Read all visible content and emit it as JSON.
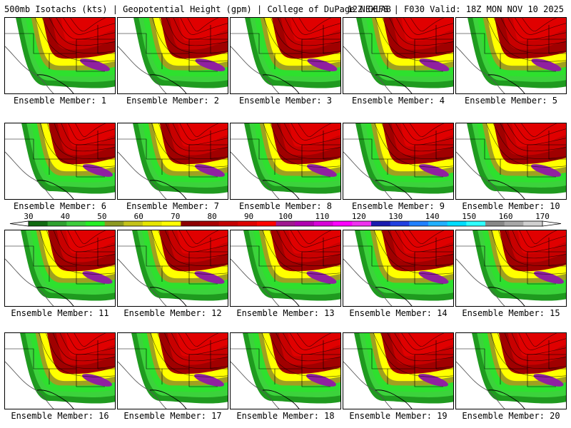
{
  "header": {
    "left": "500mb Isotachs (kts) | Geopotential Height (gpm) | College of DuPage NEXLAB",
    "right": "12Z GEFS | F030 Valid: 18Z MON NOV 10 2025"
  },
  "members": [
    {
      "label": "Ensemble Member: 1"
    },
    {
      "label": "Ensemble Member: 2"
    },
    {
      "label": "Ensemble Member: 3"
    },
    {
      "label": "Ensemble Member: 4"
    },
    {
      "label": "Ensemble Member: 5"
    },
    {
      "label": "Ensemble Member: 6"
    },
    {
      "label": "Ensemble Member: 7"
    },
    {
      "label": "Ensemble Member: 8"
    },
    {
      "label": "Ensemble Member: 9"
    },
    {
      "label": "Ensemble Member: 10"
    },
    {
      "label": "Ensemble Member: 11"
    },
    {
      "label": "Ensemble Member: 12"
    },
    {
      "label": "Ensemble Member: 13"
    },
    {
      "label": "Ensemble Member: 14"
    },
    {
      "label": "Ensemble Member: 15"
    },
    {
      "label": "Ensemble Member: 16"
    },
    {
      "label": "Ensemble Member: 17"
    },
    {
      "label": "Ensemble Member: 18"
    },
    {
      "label": "Ensemble Member: 19"
    },
    {
      "label": "Ensemble Member: 20"
    }
  ],
  "colorbar": {
    "labels": [
      "30",
      "40",
      "50",
      "60",
      "70",
      "80",
      "90",
      "100",
      "110",
      "120",
      "130",
      "140",
      "150",
      "160",
      "170"
    ],
    "colors": [
      "#116a11",
      "#2ea12e",
      "#3ccd3c",
      "#25f025",
      "#8c9a22",
      "#c4c21a",
      "#e6e600",
      "#ffff00",
      "#8c0000",
      "#a80000",
      "#c40000",
      "#dd0000",
      "#ff0000",
      "#a01890",
      "#b000b0",
      "#d800d8",
      "#ff00ff",
      "#f030f0",
      "#1a1ab0",
      "#2040e0",
      "#2080ff",
      "#20b0ff",
      "#00ddff",
      "#30ffff",
      "#888888",
      "#a8a8a8",
      "#d0d0d0"
    ],
    "under_color": "#ffffff",
    "over_color": "#ffffff"
  },
  "map_colors": {
    "green_outer": "#1f9a1f",
    "green": "#3cd23c",
    "green_light": "#2ee02e",
    "olive": "#a0a020",
    "yellow": "#ffff00",
    "red_dark": "#a00000",
    "red": "#c80000",
    "red_bright": "#e00000",
    "purple": "#9020a0",
    "border": "#000000",
    "coast": "#555555"
  }
}
